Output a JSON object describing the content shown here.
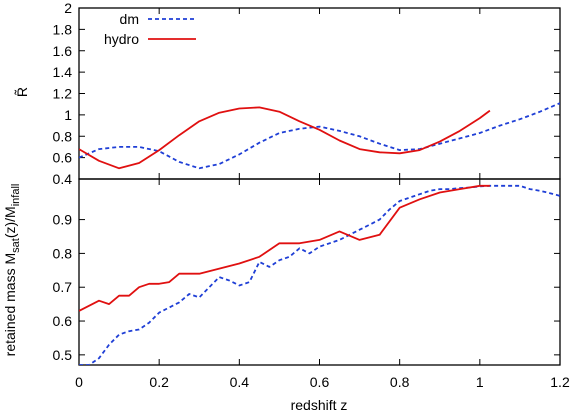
{
  "chart_data": [
    {
      "type": "line",
      "panel": "top",
      "ylabel": "R̃",
      "xlim": [
        0,
        1.2
      ],
      "ylim": [
        0.4,
        2
      ],
      "y_ticks": [
        {
          "v": 0.4,
          "label": "0.4"
        },
        {
          "v": 0.6,
          "label": "0.6"
        },
        {
          "v": 0.8,
          "label": "0.8"
        },
        {
          "v": 1.0,
          "label": "1"
        },
        {
          "v": 1.2,
          "label": "1.2"
        },
        {
          "v": 1.4,
          "label": "1.4"
        },
        {
          "v": 1.6,
          "label": "1.6"
        },
        {
          "v": 1.8,
          "label": "1.8"
        },
        {
          "v": 2.0,
          "label": "2"
        }
      ],
      "legend_position": "top-left",
      "series": [
        {
          "name": "dm",
          "color": "#1f3fd6",
          "style": "dashed",
          "x": [
            0,
            0.05,
            0.1,
            0.15,
            0.2,
            0.25,
            0.3,
            0.35,
            0.4,
            0.45,
            0.5,
            0.55,
            0.6,
            0.65,
            0.7,
            0.75,
            0.8,
            0.85,
            0.9,
            0.95,
            1.0,
            1.05,
            1.1,
            1.15,
            1.2
          ],
          "y": [
            0.6,
            0.68,
            0.7,
            0.7,
            0.66,
            0.56,
            0.5,
            0.54,
            0.63,
            0.74,
            0.83,
            0.87,
            0.89,
            0.85,
            0.8,
            0.73,
            0.67,
            0.68,
            0.73,
            0.78,
            0.83,
            0.9,
            0.96,
            1.03,
            1.11
          ]
        },
        {
          "name": "hydro",
          "color": "#e01010",
          "style": "solid",
          "x": [
            0,
            0.05,
            0.1,
            0.15,
            0.2,
            0.25,
            0.3,
            0.35,
            0.4,
            0.45,
            0.5,
            0.55,
            0.6,
            0.65,
            0.7,
            0.75,
            0.8,
            0.85,
            0.9,
            0.95,
            1.0,
            1.025
          ],
          "y": [
            0.68,
            0.57,
            0.5,
            0.55,
            0.67,
            0.81,
            0.94,
            1.02,
            1.06,
            1.07,
            1.03,
            0.94,
            0.86,
            0.76,
            0.68,
            0.65,
            0.64,
            0.67,
            0.75,
            0.85,
            0.97,
            1.04
          ]
        }
      ]
    },
    {
      "type": "line",
      "panel": "bottom",
      "xlabel": "redshift z",
      "ylabel_main": "retained mass M",
      "ylabel_sub1": "sat",
      "ylabel_mid": "(z)/M",
      "ylabel_sub2": "infall",
      "xlim": [
        0,
        1.2
      ],
      "ylim": [
        0.47,
        1.02
      ],
      "x_ticks": [
        {
          "v": 0,
          "label": "0"
        },
        {
          "v": 0.2,
          "label": "0.2"
        },
        {
          "v": 0.4,
          "label": "0.4"
        },
        {
          "v": 0.6,
          "label": "0.6"
        },
        {
          "v": 0.8,
          "label": "0.8"
        },
        {
          "v": 1.0,
          "label": "1"
        },
        {
          "v": 1.2,
          "label": "1.2"
        }
      ],
      "y_ticks": [
        {
          "v": 0.5,
          "label": "0.5"
        },
        {
          "v": 0.6,
          "label": "0.6"
        },
        {
          "v": 0.7,
          "label": "0.7"
        },
        {
          "v": 0.8,
          "label": "0.8"
        },
        {
          "v": 0.9,
          "label": "0.9"
        }
      ],
      "series": [
        {
          "name": "dm",
          "color": "#1f3fd6",
          "style": "dashed",
          "x": [
            0,
            0.025,
            0.05,
            0.075,
            0.1,
            0.125,
            0.15,
            0.175,
            0.2,
            0.225,
            0.25,
            0.275,
            0.3,
            0.325,
            0.35,
            0.375,
            0.4,
            0.425,
            0.45,
            0.475,
            0.5,
            0.525,
            0.55,
            0.575,
            0.6,
            0.625,
            0.65,
            0.675,
            0.7,
            0.725,
            0.75,
            0.775,
            0.8,
            0.825,
            0.85,
            0.875,
            0.9,
            0.925,
            0.95,
            0.975,
            1.0,
            1.025,
            1.05,
            1.075,
            1.1,
            1.125,
            1.15,
            1.175,
            1.2
          ],
          "y": [
            0.47,
            0.47,
            0.49,
            0.53,
            0.56,
            0.57,
            0.575,
            0.595,
            0.625,
            0.64,
            0.655,
            0.68,
            0.67,
            0.7,
            0.73,
            0.72,
            0.705,
            0.715,
            0.775,
            0.76,
            0.78,
            0.79,
            0.815,
            0.8,
            0.82,
            0.83,
            0.84,
            0.855,
            0.87,
            0.885,
            0.9,
            0.93,
            0.955,
            0.965,
            0.975,
            0.985,
            0.99,
            0.99,
            0.993,
            0.995,
            0.998,
            1.0,
            1.0,
            1.0,
            1.0,
            0.99,
            0.985,
            0.978,
            0.97
          ]
        },
        {
          "name": "hydro",
          "color": "#e01010",
          "style": "solid",
          "x": [
            0,
            0.05,
            0.075,
            0.1,
            0.125,
            0.15,
            0.175,
            0.2,
            0.225,
            0.25,
            0.3,
            0.35,
            0.4,
            0.45,
            0.5,
            0.55,
            0.6,
            0.65,
            0.7,
            0.75,
            0.8,
            0.85,
            0.9,
            0.95,
            1.0,
            1.025
          ],
          "y": [
            0.63,
            0.66,
            0.65,
            0.675,
            0.675,
            0.7,
            0.71,
            0.71,
            0.715,
            0.74,
            0.74,
            0.755,
            0.77,
            0.79,
            0.83,
            0.83,
            0.84,
            0.865,
            0.84,
            0.855,
            0.935,
            0.96,
            0.98,
            0.99,
            1.0,
            1.0
          ]
        }
      ]
    }
  ]
}
